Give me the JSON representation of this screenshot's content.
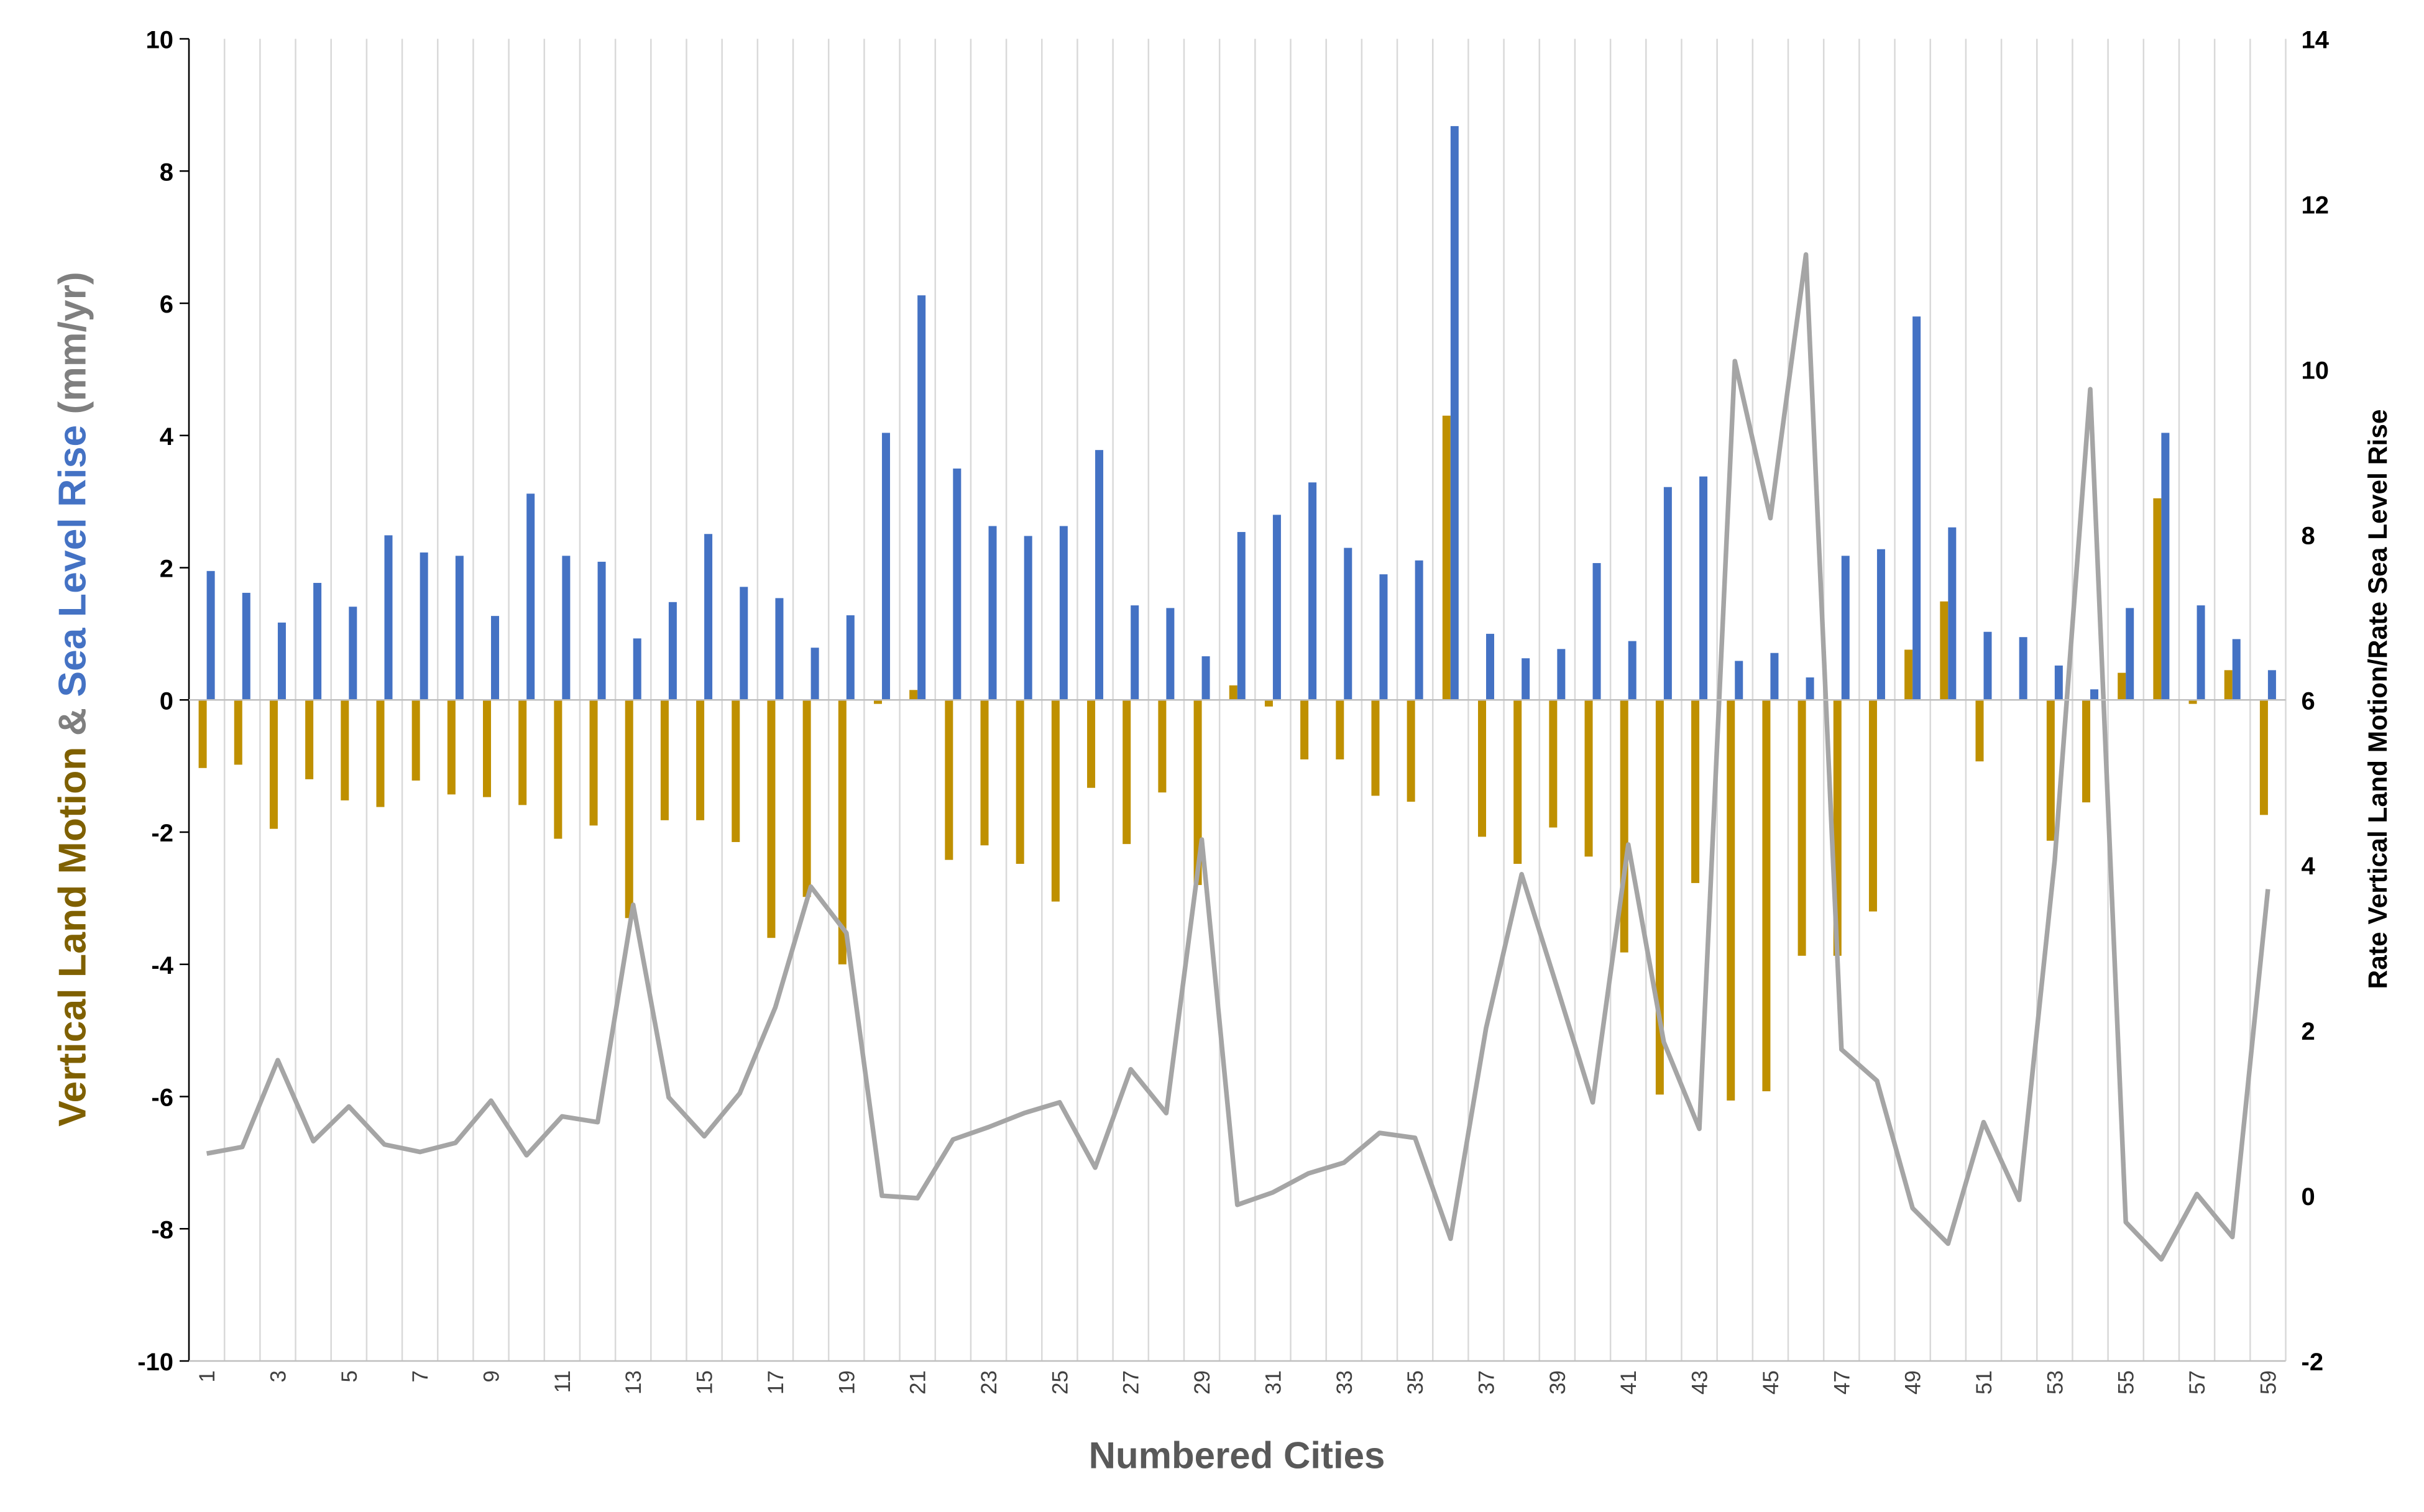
{
  "chart_data": {
    "type": "bar",
    "xlabel": "Numbered Cities",
    "ylabel_parts": [
      {
        "text": "Vertical Land Motion",
        "color": "#7F6000"
      },
      {
        "text": " & ",
        "color": "#7F7F7F"
      },
      {
        "text": "Sea Level Rise",
        "color": "#4472C4"
      },
      {
        "text": " (mm/yr)",
        "color": "#7F7F7F"
      }
    ],
    "y2label": "Rate Vertical Land Motion/Rate Sea Level Rise",
    "ylim": [
      -10,
      10
    ],
    "y_ticks": [
      -10,
      -8,
      -6,
      -4,
      -2,
      0,
      2,
      4,
      6,
      8,
      10
    ],
    "y2lim": [
      -2,
      14
    ],
    "y2_ticks": [
      -2,
      0,
      2,
      4,
      6,
      8,
      10,
      12,
      14
    ],
    "x": [
      1,
      2,
      3,
      4,
      5,
      6,
      7,
      8,
      9,
      10,
      11,
      12,
      13,
      14,
      15,
      16,
      17,
      18,
      19,
      20,
      21,
      22,
      23,
      24,
      25,
      26,
      27,
      28,
      29,
      30,
      31,
      32,
      33,
      34,
      35,
      36,
      37,
      38,
      39,
      40,
      41,
      42,
      43,
      44,
      45,
      46,
      47,
      48,
      49,
      50,
      51,
      52,
      53,
      54,
      55,
      56,
      57,
      58,
      59
    ],
    "x_tick_labels_shown": "odd",
    "grid": "vertical",
    "series": [
      {
        "key": "vlm",
        "type": "bar",
        "axis": "left",
        "color": "#BF9000",
        "values": [
          -1.03,
          -0.98,
          -1.95,
          -1.2,
          -1.52,
          -1.62,
          -1.22,
          -1.43,
          -1.47,
          -1.59,
          -2.1,
          -1.9,
          -3.3,
          -1.82,
          -1.82,
          -2.15,
          -3.6,
          -2.98,
          -4.0,
          -0.06,
          0.15,
          -2.42,
          -2.2,
          -2.48,
          -3.05,
          -1.33,
          -2.18,
          -1.4,
          -2.8,
          0.22,
          -0.1,
          -0.9,
          -0.9,
          -1.45,
          -1.54,
          4.3,
          -2.07,
          -2.48,
          -1.93,
          -2.37,
          -3.82,
          -5.97,
          -2.77,
          -6.06,
          -5.92,
          -3.87,
          -3.87,
          -3.2,
          0.76,
          1.49,
          -0.93,
          0.0,
          -2.13,
          -1.55,
          0.41,
          3.05,
          -0.06,
          0.45,
          -1.74
        ]
      },
      {
        "key": "slr",
        "type": "bar",
        "axis": "left",
        "color": "#4472C4",
        "values": [
          1.95,
          1.62,
          1.17,
          1.77,
          1.41,
          2.49,
          2.23,
          2.18,
          1.27,
          3.12,
          2.18,
          2.09,
          0.93,
          1.48,
          2.51,
          1.71,
          1.54,
          0.79,
          1.28,
          4.04,
          6.12,
          3.5,
          2.63,
          2.48,
          2.63,
          3.78,
          1.43,
          1.39,
          0.66,
          2.54,
          2.8,
          3.29,
          2.3,
          1.9,
          2.11,
          8.68,
          1.0,
          0.63,
          0.77,
          2.07,
          0.89,
          3.22,
          3.38,
          0.59,
          0.71,
          0.34,
          2.18,
          2.28,
          5.8,
          2.61,
          1.03,
          0.95,
          0.52,
          0.16,
          1.39,
          4.04,
          1.43,
          0.92,
          0.45
        ]
      },
      {
        "key": "ratio",
        "type": "line",
        "axis": "right",
        "color": "#A5A5A5",
        "values": [
          0.51,
          0.59,
          1.64,
          0.66,
          1.08,
          0.62,
          0.53,
          0.64,
          1.15,
          0.49,
          0.96,
          0.89,
          3.52,
          1.19,
          0.72,
          1.24,
          2.28,
          3.74,
          3.18,
          0.0,
          -0.03,
          0.68,
          0.83,
          1.0,
          1.13,
          0.34,
          1.53,
          1.0,
          4.31,
          -0.11,
          0.04,
          0.27,
          0.4,
          0.76,
          0.7,
          -0.52,
          2.03,
          3.89,
          2.52,
          1.13,
          4.25,
          1.86,
          0.81,
          10.1,
          8.2,
          11.39,
          1.77,
          1.39,
          -0.15,
          -0.58,
          0.89,
          -0.05,
          4.06,
          9.76,
          -0.32,
          -0.77,
          0.02,
          -0.5,
          3.71
        ]
      }
    ]
  }
}
